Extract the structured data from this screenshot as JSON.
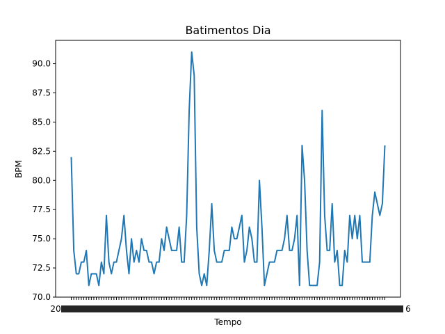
{
  "chart_data": {
    "type": "line",
    "title": "Batimentos Dia",
    "xlabel": "Tempo",
    "ylabel": "BPM",
    "ylim": [
      70.0,
      92.0
    ],
    "y_ticks": [
      "70.0",
      "72.5",
      "75.0",
      "77.5",
      "80.0",
      "82.5",
      "85.0",
      "87.5",
      "90.0"
    ],
    "x_tick_labels_visible": [
      "20",
      "6"
    ],
    "series": [
      {
        "color": "#1f77b4",
        "values": [
          82,
          74,
          72,
          72,
          73,
          73,
          74,
          71,
          72,
          72,
          72,
          71,
          73,
          72,
          77,
          73,
          72,
          73,
          73,
          74,
          75,
          77,
          74,
          72,
          75,
          73,
          74,
          73,
          75,
          74,
          74,
          73,
          73,
          72,
          73,
          73,
          75,
          74,
          76,
          75,
          74,
          74,
          74,
          76,
          73,
          73,
          77,
          86,
          91,
          89,
          76,
          72,
          71,
          72,
          71,
          74,
          78,
          74,
          73,
          73,
          73,
          74,
          74,
          74,
          76,
          75,
          75,
          76,
          77,
          73,
          74,
          76,
          75,
          73,
          73,
          80,
          76,
          71,
          72,
          73,
          73,
          73,
          74,
          74,
          74,
          75,
          77,
          74,
          74,
          75,
          77,
          71,
          83,
          80,
          74,
          71,
          71,
          71,
          71,
          73,
          86,
          77,
          74,
          74,
          78,
          73,
          74,
          71,
          71,
          74,
          73,
          77,
          75,
          77,
          75,
          77,
          73,
          73,
          73,
          73,
          77,
          79,
          78,
          77,
          78,
          83
        ]
      }
    ]
  }
}
